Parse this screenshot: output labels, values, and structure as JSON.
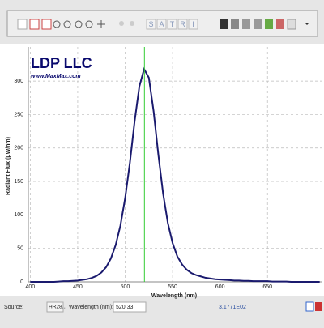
{
  "toolbar": {
    "letters": [
      "S",
      "A",
      "T",
      "R",
      "I"
    ]
  },
  "chart_data": {
    "type": "line",
    "annotation": "LDP LLC",
    "annotation_sub": "www.MaxMax.com",
    "xlabel": "Wavelength (nm)",
    "ylabel": "Radiant Flux (μW/nm)",
    "x": [
      400,
      405,
      410,
      415,
      420,
      425,
      430,
      435,
      440,
      445,
      450,
      455,
      460,
      465,
      470,
      475,
      480,
      485,
      490,
      495,
      500,
      505,
      510,
      515,
      520,
      525,
      530,
      535,
      540,
      545,
      550,
      555,
      560,
      565,
      570,
      575,
      580,
      585,
      590,
      595,
      600,
      605,
      610,
      615,
      620,
      625,
      630,
      635,
      640,
      645,
      650,
      655,
      660,
      665,
      670,
      675,
      680,
      685,
      690,
      695,
      700,
      705
    ],
    "series": [
      {
        "color": "#1a1a6e",
        "values": [
          0,
          0,
          0,
          0,
          0,
          0,
          0.5,
          1,
          1,
          1.5,
          2,
          3,
          4,
          6,
          9,
          14,
          22,
          35,
          55,
          84,
          125,
          178,
          240,
          292,
          318,
          305,
          255,
          190,
          132,
          88,
          58,
          38,
          26,
          18,
          13,
          10,
          8,
          6,
          5,
          4,
          3.5,
          3,
          2.5,
          2,
          2,
          1.5,
          1.5,
          1,
          1,
          1,
          1,
          0.5,
          0.5,
          0.5,
          0.5,
          0,
          0,
          0,
          0,
          0,
          0,
          0
        ]
      }
    ],
    "cursor_x": 520.33,
    "cursor_color": "#33cc33",
    "xlim": [
      398,
      707
    ],
    "xticks": [
      400,
      450,
      500,
      550,
      600,
      650
    ],
    "ylim": [
      0,
      351
    ],
    "yticks": [
      0,
      50,
      100,
      150,
      200,
      250,
      300
    ],
    "grid": true
  },
  "status": {
    "source_label": "Source:",
    "source_value": "HR28...",
    "wavelength_label": "Wavelength (nm):",
    "readout": "3.1771E02"
  }
}
